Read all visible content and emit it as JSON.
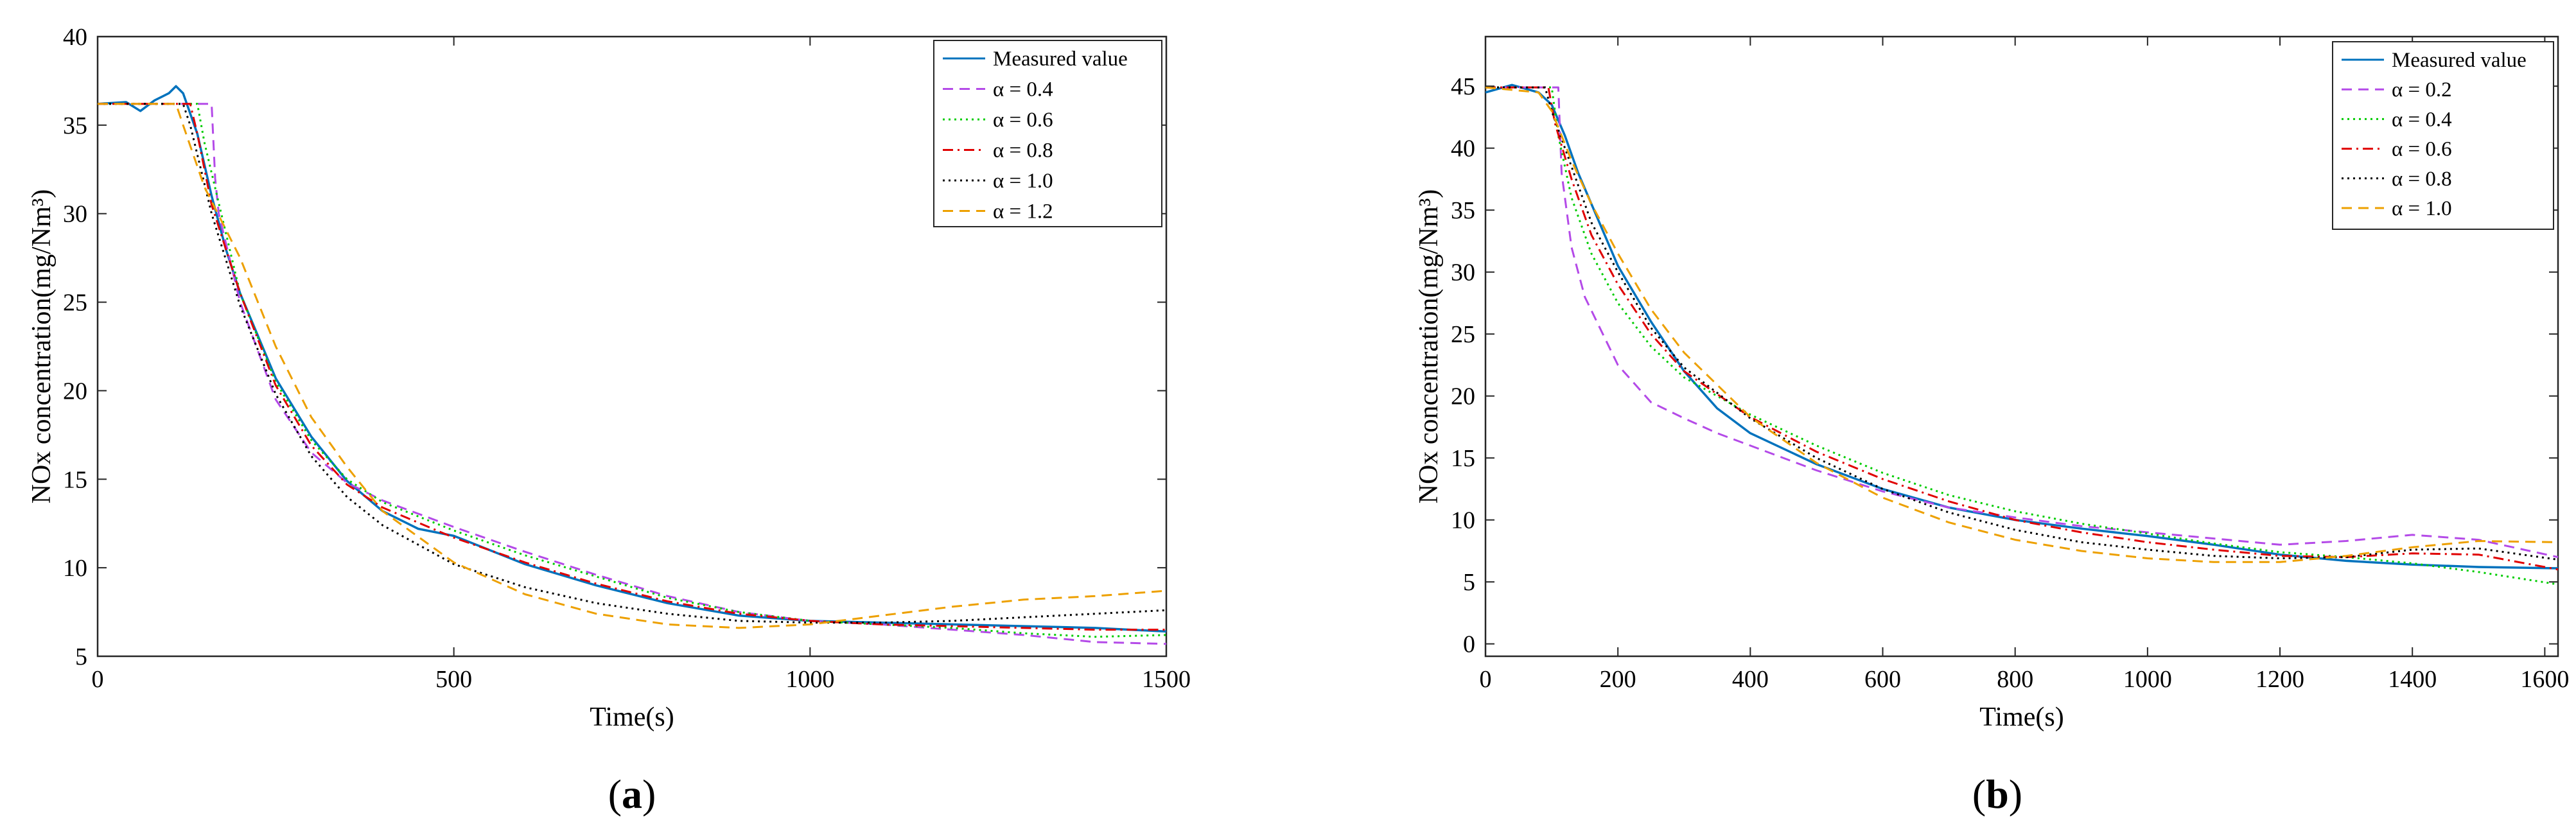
{
  "panels": [
    {
      "label_open": "(",
      "label_letter": "a",
      "label_close": ")"
    },
    {
      "label_open": "(",
      "label_letter": "b",
      "label_close": ")"
    }
  ],
  "chart_data": [
    {
      "type": "line",
      "panel": "a",
      "xlabel": "Time(s)",
      "ylabel": "NOx concentration(mg/Nm³)",
      "xlim": [
        0,
        1500
      ],
      "ylim": [
        5,
        40
      ],
      "xticks": [
        0,
        500,
        1000,
        1500
      ],
      "yticks": [
        5,
        10,
        15,
        20,
        25,
        30,
        35,
        40
      ],
      "grid": false,
      "legend_position": "top-right",
      "series": [
        {
          "name": "Measured value",
          "color": "#0072BD",
          "dash": "solid",
          "x": [
            0,
            40,
            60,
            80,
            100,
            110,
            120,
            140,
            160,
            180,
            200,
            250,
            300,
            350,
            400,
            450,
            500,
            600,
            700,
            800,
            900,
            1000,
            1100,
            1200,
            1300,
            1400,
            1500
          ],
          "y": [
            36.2,
            36.3,
            35.8,
            36.4,
            36.8,
            37.2,
            36.8,
            34.5,
            31.0,
            28.0,
            25.5,
            20.7,
            17.4,
            14.9,
            13.2,
            12.2,
            11.8,
            10.2,
            9.0,
            8.0,
            7.3,
            7.0,
            6.9,
            6.8,
            6.7,
            6.6,
            6.4
          ]
        },
        {
          "name": "α = 0.4",
          "color": "#B44AE8",
          "dash": "dashed",
          "x": [
            0,
            160,
            165,
            170,
            200,
            250,
            300,
            350,
            400,
            500,
            600,
            700,
            800,
            900,
            1000,
            1100,
            1200,
            1300,
            1400,
            1500
          ],
          "y": [
            36.2,
            36.2,
            32.0,
            30.0,
            25.0,
            19.5,
            16.5,
            14.8,
            13.8,
            12.3,
            10.9,
            9.6,
            8.4,
            7.5,
            7.0,
            6.8,
            6.5,
            6.2,
            5.8,
            5.7
          ]
        },
        {
          "name": "α = 0.6",
          "color": "#00CC00",
          "dash": "dotted",
          "x": [
            0,
            140,
            150,
            200,
            250,
            300,
            350,
            400,
            500,
            600,
            700,
            800,
            900,
            1000,
            1100,
            1200,
            1300,
            1400,
            1500
          ],
          "y": [
            36.2,
            36.2,
            34.0,
            25.5,
            20.5,
            17.2,
            15.0,
            13.7,
            12.1,
            10.7,
            9.5,
            8.3,
            7.5,
            7.0,
            6.8,
            6.6,
            6.3,
            6.1,
            6.2
          ]
        },
        {
          "name": "α = 0.8",
          "color": "#E00000",
          "dash": "dashdot",
          "x": [
            0,
            130,
            140,
            160,
            200,
            250,
            300,
            350,
            400,
            500,
            600,
            700,
            800,
            900,
            1000,
            1100,
            1200,
            1300,
            1400,
            1500
          ],
          "y": [
            36.2,
            36.2,
            34.5,
            30.5,
            25.5,
            20.3,
            16.9,
            14.7,
            13.4,
            11.7,
            10.3,
            9.1,
            8.1,
            7.4,
            7.0,
            6.8,
            6.7,
            6.6,
            6.5,
            6.5
          ]
        },
        {
          "name": "α = 1.0",
          "color": "#000000",
          "dash": "dotted",
          "x": [
            0,
            120,
            130,
            160,
            200,
            250,
            300,
            350,
            400,
            500,
            600,
            700,
            800,
            900,
            1000,
            1100,
            1200,
            1300,
            1400,
            1500
          ],
          "y": [
            36.2,
            36.2,
            35.0,
            30.0,
            24.8,
            19.8,
            16.3,
            14.0,
            12.4,
            10.2,
            8.9,
            8.0,
            7.4,
            7.0,
            6.9,
            6.9,
            7.0,
            7.2,
            7.4,
            7.6
          ]
        },
        {
          "name": "α = 1.2",
          "color": "#EDA000",
          "dash": "dashed",
          "x": [
            0,
            110,
            120,
            150,
            200,
            250,
            300,
            350,
            400,
            500,
            600,
            700,
            800,
            900,
            1000,
            1100,
            1200,
            1300,
            1400,
            1500
          ],
          "y": [
            36.2,
            36.2,
            35.0,
            31.5,
            27.5,
            22.5,
            18.5,
            15.7,
            13.2,
            10.3,
            8.5,
            7.4,
            6.8,
            6.6,
            6.8,
            7.3,
            7.8,
            8.2,
            8.4,
            8.7
          ]
        }
      ]
    },
    {
      "type": "line",
      "panel": "b",
      "xlabel": "Time(s)",
      "ylabel": "NOx concentration(mg/Nm³)",
      "xlim": [
        0,
        1620
      ],
      "ylim": [
        -1,
        49
      ],
      "xticks": [
        0,
        200,
        400,
        600,
        800,
        1000,
        1200,
        1400,
        1600
      ],
      "yticks": [
        0,
        5,
        10,
        15,
        20,
        25,
        30,
        35,
        40,
        45
      ],
      "grid": false,
      "legend_position": "top-right",
      "series": [
        {
          "name": "Measured value",
          "color": "#0072BD",
          "dash": "solid",
          "x": [
            0,
            40,
            60,
            80,
            100,
            120,
            140,
            160,
            200,
            250,
            300,
            350,
            400,
            500,
            600,
            700,
            800,
            900,
            1000,
            1100,
            1200,
            1300,
            1400,
            1500,
            1620
          ],
          "y": [
            44.5,
            45.1,
            44.8,
            44.5,
            43.5,
            41.0,
            38.0,
            35.5,
            30.5,
            26.0,
            22.0,
            19.0,
            17.0,
            14.5,
            12.5,
            11.0,
            10.0,
            9.3,
            8.7,
            8.0,
            7.2,
            6.7,
            6.4,
            6.2,
            6.1
          ]
        },
        {
          "name": "α = 0.2",
          "color": "#B44AE8",
          "dash": "dashed",
          "x": [
            0,
            110,
            115,
            130,
            150,
            200,
            250,
            300,
            350,
            400,
            500,
            600,
            700,
            800,
            900,
            1000,
            1100,
            1200,
            1300,
            1400,
            1500,
            1620
          ],
          "y": [
            44.9,
            44.9,
            38.0,
            32.0,
            28.0,
            22.5,
            19.5,
            18.2,
            17.0,
            16.0,
            14.0,
            12.3,
            11.0,
            10.2,
            9.5,
            9.0,
            8.5,
            8.0,
            8.3,
            8.8,
            8.4,
            7.0
          ]
        },
        {
          "name": "α = 0.4",
          "color": "#00CC00",
          "dash": "dotted",
          "x": [
            0,
            100,
            110,
            130,
            160,
            200,
            250,
            300,
            400,
            500,
            600,
            700,
            800,
            900,
            1000,
            1100,
            1200,
            1300,
            1400,
            1500,
            1620
          ],
          "y": [
            44.9,
            44.9,
            41.0,
            36.0,
            31.5,
            27.5,
            24.0,
            21.5,
            18.5,
            16.0,
            13.8,
            12.0,
            10.7,
            9.7,
            8.9,
            8.1,
            7.4,
            7.0,
            6.5,
            5.8,
            4.8
          ]
        },
        {
          "name": "α = 0.6",
          "color": "#E00000",
          "dash": "dashdot",
          "x": [
            0,
            95,
            105,
            130,
            160,
            200,
            250,
            300,
            400,
            500,
            600,
            700,
            800,
            900,
            1000,
            1100,
            1200,
            1300,
            1400,
            1500,
            1620
          ],
          "y": [
            44.9,
            44.9,
            42.0,
            37.5,
            33.0,
            29.0,
            25.0,
            22.0,
            18.3,
            15.5,
            13.3,
            11.5,
            10.0,
            9.0,
            8.2,
            7.6,
            7.1,
            7.0,
            7.3,
            7.2,
            6.0
          ]
        },
        {
          "name": "α = 0.8",
          "color": "#000000",
          "dash": "dotted",
          "x": [
            0,
            90,
            100,
            130,
            160,
            200,
            250,
            300,
            400,
            500,
            600,
            700,
            800,
            900,
            1000,
            1100,
            1200,
            1300,
            1400,
            1500,
            1620
          ],
          "y": [
            44.9,
            44.9,
            43.0,
            38.5,
            34.0,
            30.0,
            25.5,
            22.3,
            18.2,
            15.0,
            12.5,
            10.6,
            9.2,
            8.2,
            7.6,
            7.1,
            6.9,
            7.0,
            7.6,
            7.7,
            6.8
          ]
        },
        {
          "name": "α = 1.0",
          "color": "#EDA000",
          "dash": "dashed",
          "x": [
            0,
            80,
            100,
            130,
            160,
            200,
            250,
            300,
            400,
            500,
            600,
            700,
            800,
            900,
            1000,
            1100,
            1200,
            1300,
            1400,
            1500,
            1620
          ],
          "y": [
            44.9,
            44.5,
            43.0,
            39.0,
            35.5,
            31.5,
            27.0,
            23.5,
            18.3,
            14.6,
            11.8,
            9.8,
            8.4,
            7.5,
            6.9,
            6.6,
            6.6,
            7.1,
            7.8,
            8.3,
            8.2
          ]
        }
      ]
    }
  ]
}
